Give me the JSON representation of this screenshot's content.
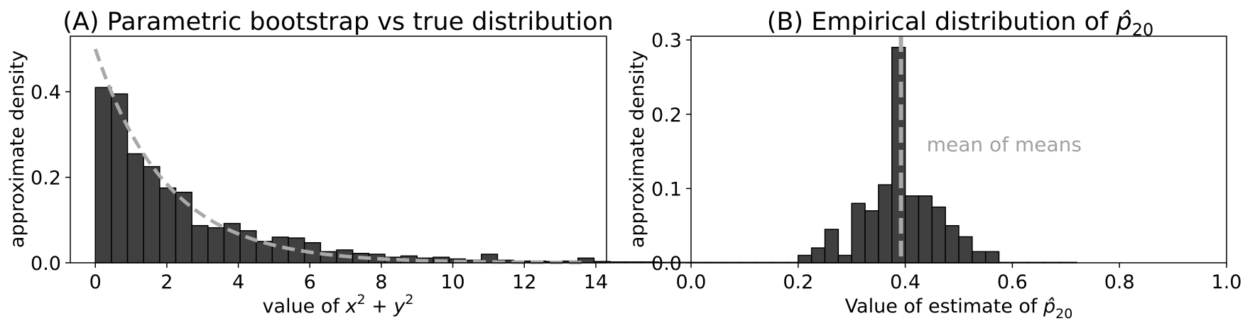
{
  "chart_data": [
    {
      "panel": "A",
      "type": "bar",
      "title": "(A) Parametric bootstrap vs true distribution",
      "xlabel": "value of x² + y²",
      "xlabel_parts": {
        "prefix": "value of ",
        "x": "x",
        "plus": " + ",
        "y": "y",
        "sup": "2"
      },
      "ylabel": "approximate density",
      "xlim": [
        -0.7,
        14.3
      ],
      "ylim": [
        0,
        0.53
      ],
      "xticks": [
        0,
        2,
        4,
        6,
        8,
        10,
        12,
        14
      ],
      "xtick_labels": [
        "0",
        "2",
        "4",
        "6",
        "8",
        "10",
        "12",
        "14"
      ],
      "yticks": [
        0.0,
        0.2,
        0.4
      ],
      "ytick_labels": [
        "0.0",
        "0.2",
        "0.4"
      ],
      "bin_width": 0.45,
      "bin_start": 0.0,
      "values": [
        0.41,
        0.395,
        0.255,
        0.225,
        0.175,
        0.165,
        0.087,
        0.082,
        0.092,
        0.075,
        0.05,
        0.06,
        0.058,
        0.047,
        0.026,
        0.03,
        0.022,
        0.02,
        0.013,
        0.016,
        0.011,
        0.013,
        0.009,
        0.006,
        0.02,
        0.006,
        0.004,
        0.004,
        0.003,
        0.004,
        0.011,
        0.003,
        0.002,
        0.002,
        0.002,
        0.001,
        0.001,
        0.001,
        0.001,
        0.001,
        0.001,
        0.001,
        0.001,
        0.001,
        0.001,
        0.001,
        0.001,
        0.001,
        0.001,
        0.001,
        0.001,
        0.001,
        0.001,
        0.001,
        0.001,
        0.001,
        0.001,
        0.001,
        0.001,
        0.001,
        0.001
      ],
      "true_curve": {
        "style": "dashed",
        "color": "#a9a9a9",
        "function": "0.5*exp(-x/2)",
        "x_range": [
          0,
          13.6
        ]
      }
    },
    {
      "panel": "B",
      "type": "bar",
      "title": "(B) Empirical distribution of p̂₂₀",
      "title_parts": {
        "prefix": "(B) Empirical distribution of ",
        "p": "p̂",
        "sub": "20"
      },
      "xlabel": "Value of estimate of p̂₂₀",
      "xlabel_parts": {
        "prefix": "Value of estimate of ",
        "p": "p̂",
        "sub": "20"
      },
      "ylabel": "approximate density",
      "xlim": [
        0.0,
        1.0
      ],
      "ylim": [
        0,
        0.305
      ],
      "xticks": [
        0.0,
        0.2,
        0.4,
        0.6,
        0.8,
        1.0
      ],
      "xtick_labels": [
        "0.0",
        "0.2",
        "0.4",
        "0.6",
        "0.8",
        "1.0"
      ],
      "yticks": [
        0.0,
        0.1,
        0.2,
        0.3
      ],
      "ytick_labels": [
        "0.0",
        "0.1",
        "0.2",
        "0.3"
      ],
      "bin_width": 0.025,
      "bin_start": 0.2,
      "values": [
        0.01,
        0.02,
        0.045,
        0.01,
        0.08,
        0.07,
        0.105,
        0.29,
        0.09,
        0.09,
        0.075,
        0.05,
        0.035,
        0.015,
        0.015
      ],
      "mean_line": {
        "x": 0.392,
        "color": "#a9a9a9",
        "style": "dashed"
      },
      "annotation": "mean of means",
      "annotation_x": 0.44,
      "annotation_y": 0.15
    }
  ]
}
